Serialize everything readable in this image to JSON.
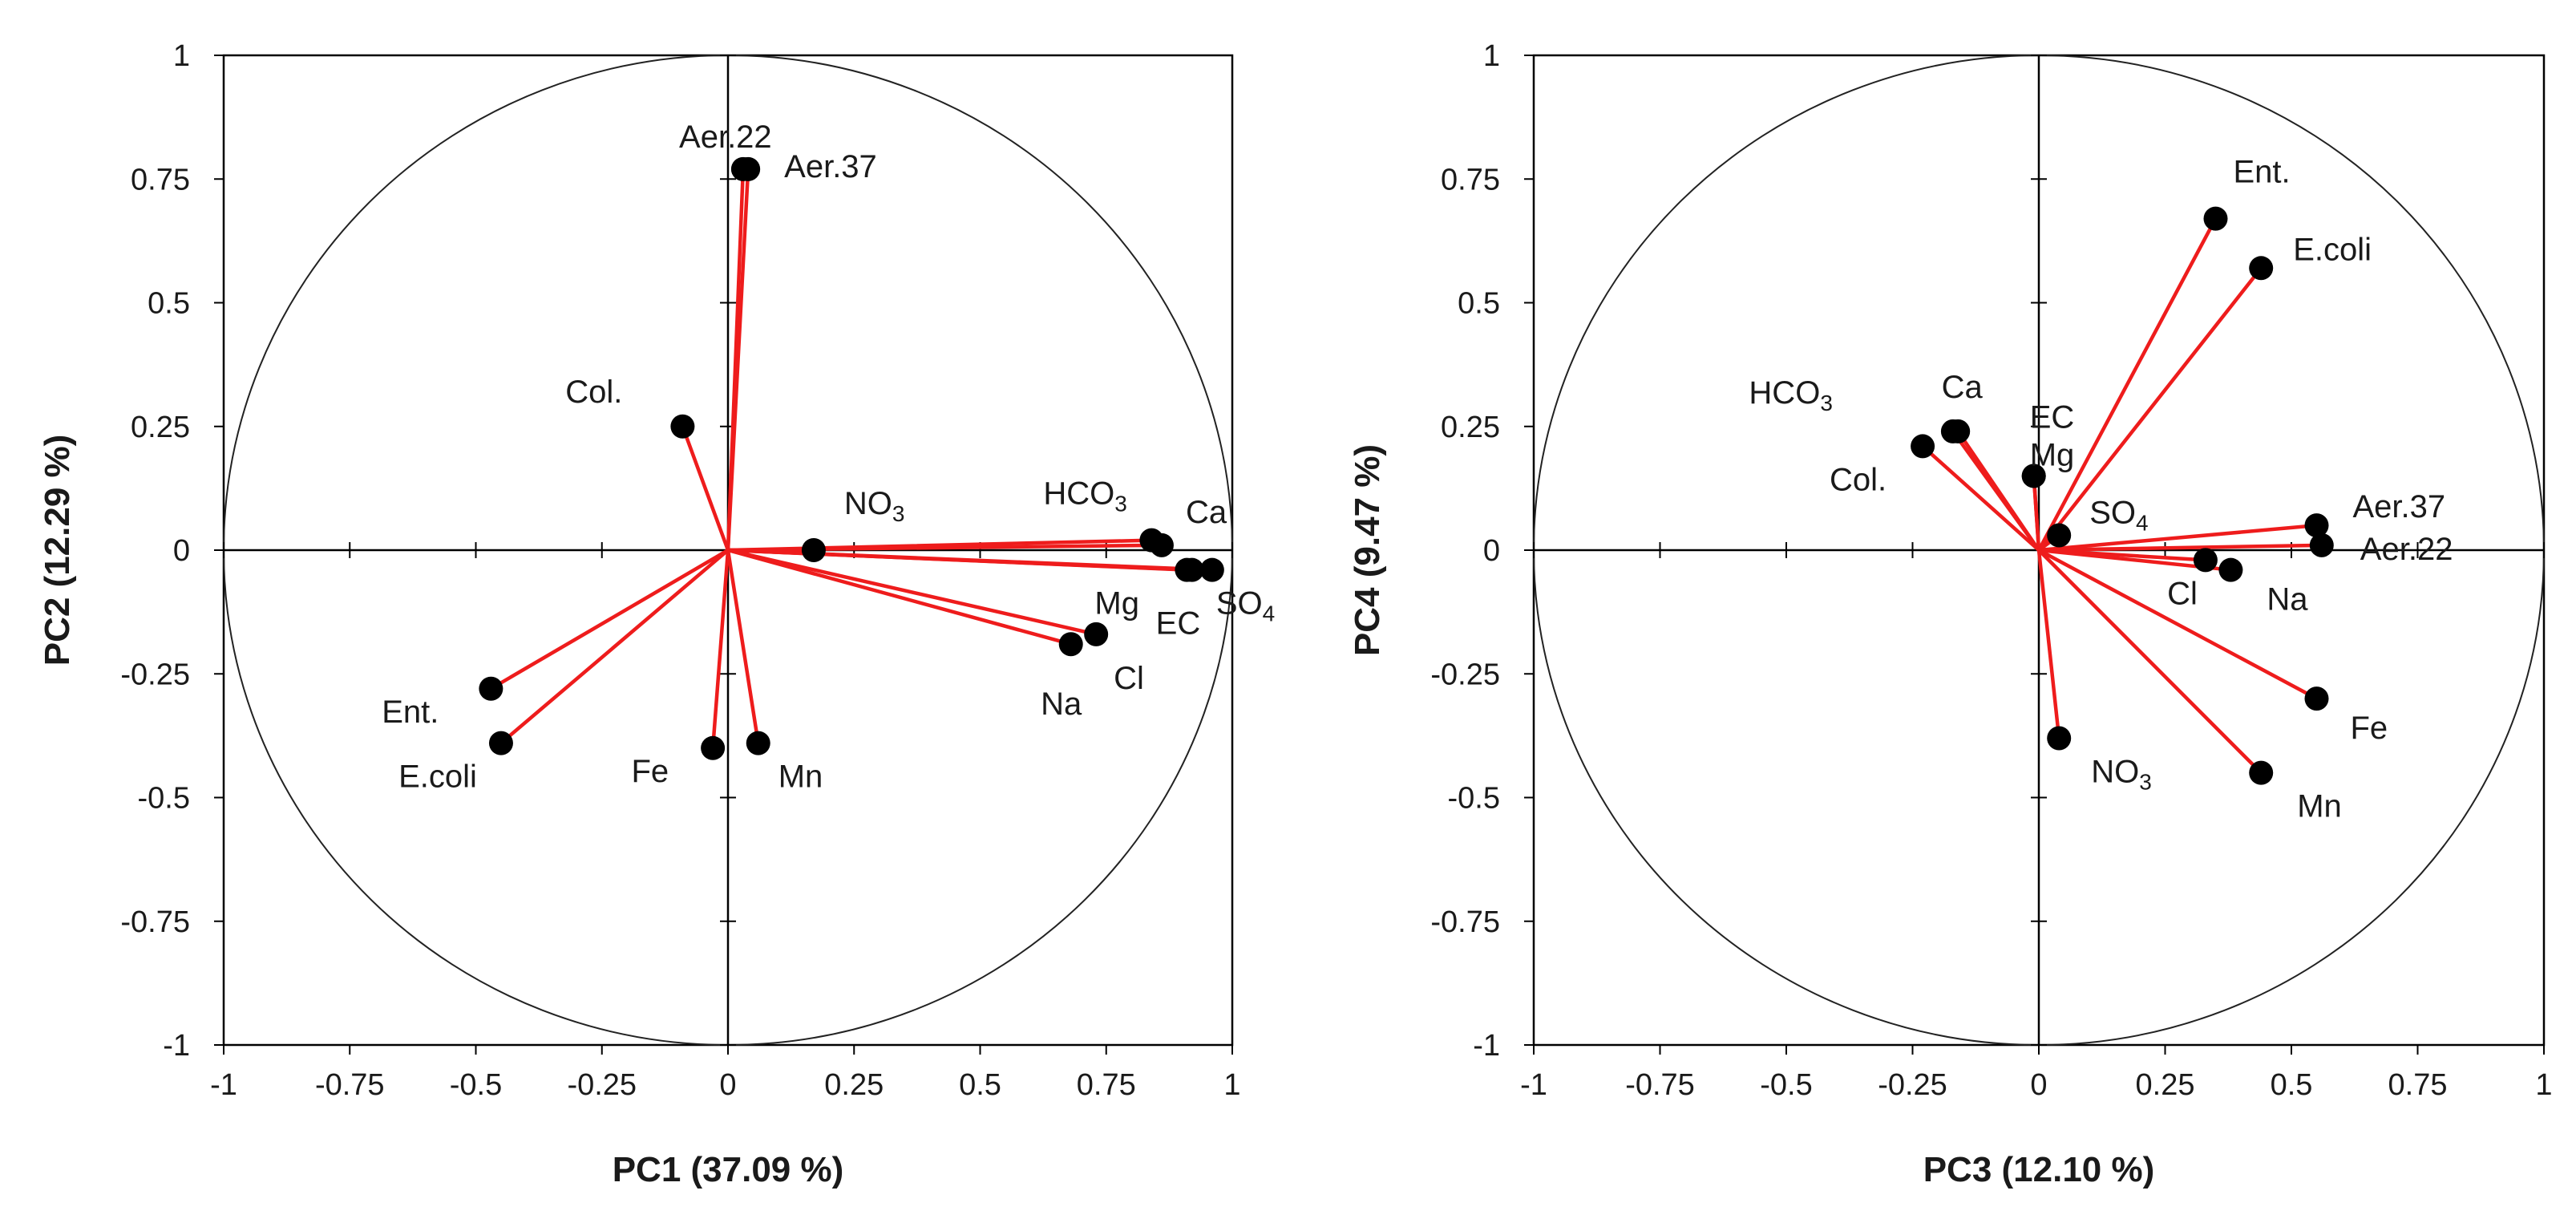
{
  "chart_data": [
    {
      "type": "scatter",
      "subtype": "pca-correlation-circle",
      "xlabel": "PC1 (37.09 %)",
      "ylabel": "PC2 (12.29 %)",
      "xlim": [
        -1,
        1
      ],
      "ylim": [
        -1,
        1
      ],
      "xticks": [
        "-1",
        "-0.75",
        "-0.5",
        "-0.25",
        "0",
        "0.25",
        "0.5",
        "0.75",
        "1"
      ],
      "yticks": [
        "1",
        "0.75",
        "0.5",
        "0.25",
        "0",
        "-0.25",
        "-0.5",
        "-0.75",
        "-1"
      ],
      "unit_circle": true,
      "points": [
        {
          "label": "Aer.22",
          "x": 0.03,
          "y": 0.77
        },
        {
          "label": "Aer.37",
          "x": 0.04,
          "y": 0.77
        },
        {
          "label": "Col.",
          "x": -0.09,
          "y": 0.25
        },
        {
          "label": "NO",
          "label_sub": "3",
          "x": 0.17,
          "y": 0.0
        },
        {
          "label": "HCO",
          "label_sub": "3",
          "x": 0.84,
          "y": 0.02
        },
        {
          "label": "Ca",
          "x": 0.86,
          "y": 0.01
        },
        {
          "label": "Mg",
          "x": 0.91,
          "y": -0.04
        },
        {
          "label": "EC",
          "x": 0.92,
          "y": -0.04
        },
        {
          "label": "SO",
          "label_sub": "4",
          "x": 0.96,
          "y": -0.04
        },
        {
          "label": "Cl",
          "x": 0.73,
          "y": -0.17
        },
        {
          "label": "Na",
          "x": 0.68,
          "y": -0.19
        },
        {
          "label": "Ent.",
          "x": -0.47,
          "y": -0.28
        },
        {
          "label": "E.coli",
          "x": -0.45,
          "y": -0.39
        },
        {
          "label": "Fe",
          "x": -0.03,
          "y": -0.4
        },
        {
          "label": "Mn",
          "x": 0.06,
          "y": -0.39
        }
      ]
    },
    {
      "type": "scatter",
      "subtype": "pca-correlation-circle",
      "xlabel": "PC3 (12.10 %)",
      "ylabel": "PC4 (9.47 %)",
      "xlim": [
        -1,
        1
      ],
      "ylim": [
        -1,
        1
      ],
      "xticks": [
        "-1",
        "-0.75",
        "-0.5",
        "-0.25",
        "0",
        "0.25",
        "0.5",
        "0.75",
        "1"
      ],
      "yticks": [
        "1",
        "0.75",
        "0.5",
        "0.25",
        "0",
        "-0.25",
        "-0.5",
        "-0.75",
        "-1"
      ],
      "unit_circle": true,
      "points": [
        {
          "label": "Ent.",
          "x": 0.35,
          "y": 0.67
        },
        {
          "label": "E.coli",
          "x": 0.44,
          "y": 0.57
        },
        {
          "label": "HCO",
          "label_sub": "3",
          "x": -0.17,
          "y": 0.24
        },
        {
          "label": "Ca",
          "x": -0.16,
          "y": 0.24
        },
        {
          "label": "EC",
          "x": -0.01,
          "y": 0.15
        },
        {
          "label": "Mg",
          "x": -0.01,
          "y": 0.15
        },
        {
          "label": "Col.",
          "x": -0.23,
          "y": 0.21
        },
        {
          "label": "SO",
          "label_sub": "4",
          "x": 0.04,
          "y": 0.03
        },
        {
          "label": "Aer.37",
          "x": 0.55,
          "y": 0.05
        },
        {
          "label": "Aer.22",
          "x": 0.56,
          "y": 0.01
        },
        {
          "label": "Cl",
          "x": 0.33,
          "y": -0.02
        },
        {
          "label": "Na",
          "x": 0.38,
          "y": -0.04
        },
        {
          "label": "Fe",
          "x": 0.55,
          "y": -0.3
        },
        {
          "label": "Mn",
          "x": 0.44,
          "y": -0.45
        },
        {
          "label": "NO",
          "label_sub": "3",
          "x": 0.04,
          "y": -0.38
        }
      ]
    }
  ],
  "colors": {
    "vector": "#ee1c1c",
    "point": "#000000",
    "axis": "#000000"
  }
}
